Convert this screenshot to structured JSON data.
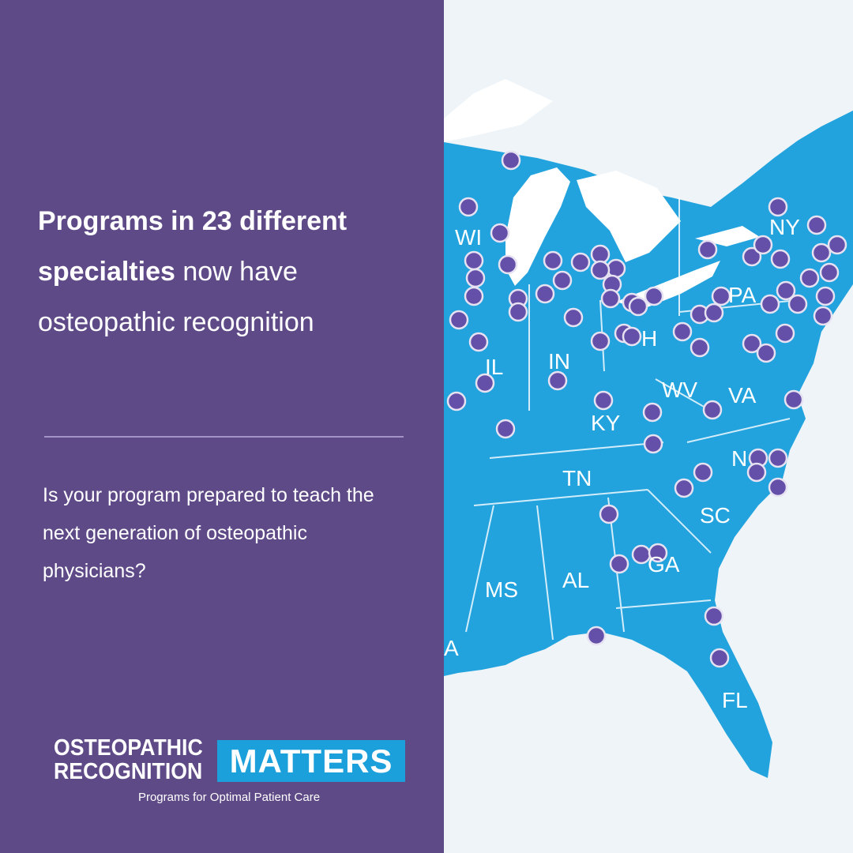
{
  "headline": {
    "bold": "Programs in 23 different specialties",
    "rest": "now have osteopathic recognition"
  },
  "question": "Is your program prepared to teach the next generation of osteopathic physicians?",
  "logo": {
    "line1": "OSTEOPATHIC",
    "line2": "RECOGNITION",
    "badge": "MATTERS",
    "tagline": "Programs for Optimal Patient Care"
  },
  "map": {
    "labels": [
      "WI",
      "IL",
      "IN",
      "KY",
      "TN",
      "MS",
      "AL",
      "GA",
      "SC",
      "N",
      "VA",
      "WV",
      "PA",
      "NY",
      "H",
      "FL",
      "A"
    ]
  }
}
